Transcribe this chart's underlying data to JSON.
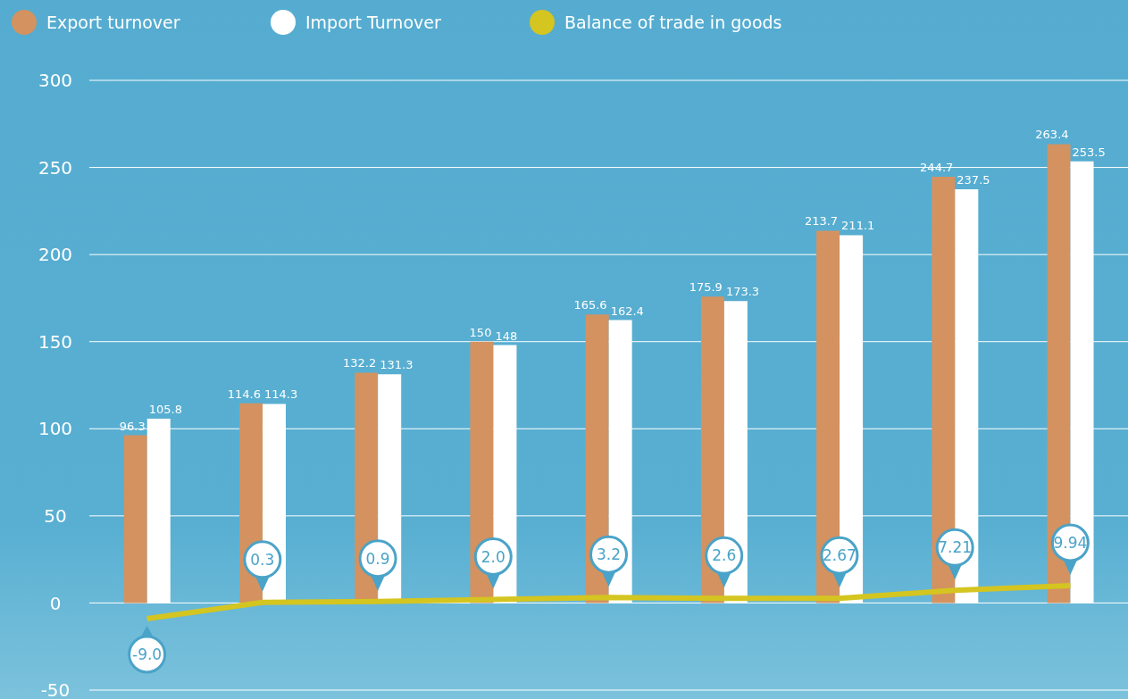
{
  "chart_data": {
    "type": "bar",
    "categories": [
      null,
      null,
      null,
      null,
      null,
      null,
      null,
      null,
      null
    ],
    "series": [
      {
        "name": "Export turnover",
        "color": "#d39260",
        "values": [
          96.3,
          114.6,
          132.2,
          150,
          165.6,
          175.9,
          213.7,
          244.7,
          263.4
        ]
      },
      {
        "name": "Import Turnover",
        "color": "#ffffff",
        "values": [
          105.8,
          114.3,
          131.3,
          148,
          162.4,
          173.3,
          211.1,
          237.5,
          253.5
        ]
      },
      {
        "name": "Balance of trade in goods",
        "type": "line",
        "color": "#d4c520",
        "values": [
          -9.0,
          0.3,
          0.9,
          2.0,
          3.2,
          2.6,
          2.67,
          7.21,
          9.94
        ],
        "value_labels": [
          "-9.0",
          "0.3",
          "0.9",
          "2.0",
          "3.2",
          "2.6",
          "2.67",
          "7.21",
          "9.94"
        ]
      }
    ],
    "ylim": [
      -50,
      300
    ],
    "yticks": [
      -50,
      0,
      50,
      100,
      150,
      200,
      250,
      300
    ],
    "grid": "y",
    "legend": "top left",
    "data_labels": true,
    "tick_labels": "y"
  }
}
